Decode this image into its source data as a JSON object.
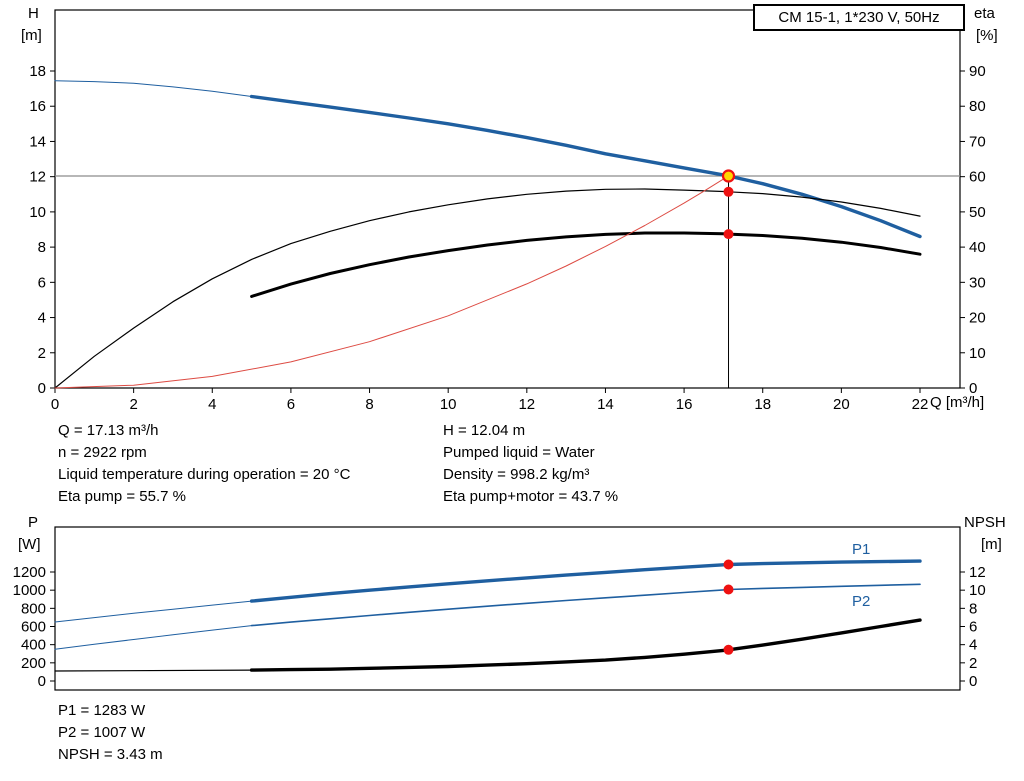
{
  "title_box": {
    "label": "CM 15-1, 1*230 V, 50Hz"
  },
  "colors": {
    "curve_blue": "#1f5fa0",
    "curve_black": "#000000",
    "system_red": "#dd4b43",
    "marker_red": "#ee1111",
    "duty_yellow": "#ffd700",
    "ref_gray": "#8c8c8c"
  },
  "info": {
    "top_left": [
      "Q = 17.13 m³/h",
      "n = 2922 rpm",
      "Liquid temperature during operation = 20 °C",
      "Eta pump = 55.7 %"
    ],
    "top_right": [
      "H = 12.04 m",
      "Pumped liquid = Water",
      "Density = 998.2 kg/m³",
      "Eta pump+motor = 43.7 %"
    ],
    "bottom": [
      "P1 = 1283 W",
      "P2 = 1007 W",
      "NPSH = 3.43 m"
    ]
  },
  "chart_data": [
    {
      "name": "qh-chart",
      "type": "line",
      "title": "CM 15-1, 1*230 V, 50Hz",
      "axes": {
        "left": {
          "title_lines": [
            "H",
            "[m]"
          ],
          "ticks": [
            0,
            2,
            4,
            6,
            8,
            10,
            12,
            14,
            16,
            18
          ],
          "range": [
            0,
            21.5
          ]
        },
        "right": {
          "title_lines": [
            "eta",
            "[%]"
          ],
          "ticks": [
            0,
            10,
            20,
            30,
            40,
            50,
            60,
            70,
            80,
            90
          ],
          "range": [
            0,
            107
          ]
        },
        "x": {
          "title": "Q [m³/h]",
          "ticks": [
            0,
            2,
            4,
            6,
            8,
            10,
            12,
            14,
            16,
            18,
            20,
            22
          ],
          "range": [
            0,
            23
          ]
        }
      },
      "ref_lines": [
        {
          "name": "duty-flow-line",
          "type": "v",
          "x": 17.13,
          "from": 0,
          "to": 12.04,
          "axis": "left",
          "color": "#000000",
          "width": 1
        },
        {
          "name": "duty-head-line",
          "type": "h",
          "value": 12.04,
          "axis": "left",
          "color": "#8c8c8c",
          "width": 1.2
        }
      ],
      "series": [
        {
          "name": "head-extension",
          "axis": "left",
          "color": "#1f5fa0",
          "width": 1,
          "points": [
            [
              0,
              17.45
            ],
            [
              1,
              17.4
            ],
            [
              2,
              17.3
            ],
            [
              3,
              17.1
            ],
            [
              4,
              16.85
            ],
            [
              5,
              16.55
            ]
          ]
        },
        {
          "name": "head-curve",
          "axis": "left",
          "color": "#1f5fa0",
          "width": 3.4,
          "points": [
            [
              5,
              16.55
            ],
            [
              6,
              16.25
            ],
            [
              7,
              15.95
            ],
            [
              8,
              15.65
            ],
            [
              9,
              15.33
            ],
            [
              10,
              15.0
            ],
            [
              11,
              14.63
            ],
            [
              12,
              14.22
            ],
            [
              13,
              13.78
            ],
            [
              14,
              13.3
            ],
            [
              15,
              12.9
            ],
            [
              16,
              12.5
            ],
            [
              17,
              12.1
            ],
            [
              17.13,
              12.04
            ],
            [
              18,
              11.6
            ],
            [
              19,
              11.0
            ],
            [
              20,
              10.3
            ],
            [
              21,
              9.5
            ],
            [
              22,
              8.6
            ]
          ]
        },
        {
          "name": "eta-pump",
          "axis": "right",
          "color": "#000000",
          "width": 1.2,
          "points": [
            [
              0,
              0
            ],
            [
              1,
              9
            ],
            [
              2,
              17
            ],
            [
              3,
              24.5
            ],
            [
              4,
              31
            ],
            [
              5,
              36.5
            ],
            [
              6,
              41
            ],
            [
              7,
              44.5
            ],
            [
              8,
              47.5
            ],
            [
              9,
              50
            ],
            [
              10,
              52
            ],
            [
              11,
              53.7
            ],
            [
              12,
              55
            ],
            [
              13,
              55.9
            ],
            [
              14,
              56.4
            ],
            [
              15,
              56.5
            ],
            [
              16,
              56.2
            ],
            [
              17,
              55.8
            ],
            [
              17.13,
              55.7
            ],
            [
              18,
              55.2
            ],
            [
              19,
              54.2
            ],
            [
              20,
              52.8
            ],
            [
              21,
              51
            ],
            [
              22,
              48.8
            ]
          ]
        },
        {
          "name": "eta-pump-motor",
          "axis": "right",
          "color": "#000000",
          "width": 3,
          "points": [
            [
              5,
              26
            ],
            [
              6,
              29.5
            ],
            [
              7,
              32.5
            ],
            [
              8,
              35
            ],
            [
              9,
              37.2
            ],
            [
              10,
              39
            ],
            [
              11,
              40.6
            ],
            [
              12,
              41.9
            ],
            [
              13,
              42.9
            ],
            [
              14,
              43.6
            ],
            [
              15,
              44.0
            ],
            [
              16,
              44.0
            ],
            [
              17,
              43.8
            ],
            [
              17.13,
              43.7
            ],
            [
              18,
              43.3
            ],
            [
              19,
              42.5
            ],
            [
              20,
              41.4
            ],
            [
              21,
              39.9
            ],
            [
              22,
              38.0
            ]
          ]
        },
        {
          "name": "system-curve",
          "axis": "left",
          "color": "#dd4b43",
          "width": 1,
          "points": [
            [
              0,
              0
            ],
            [
              2,
              0.16
            ],
            [
              4,
              0.66
            ],
            [
              6,
              1.48
            ],
            [
              8,
              2.63
            ],
            [
              10,
              4.1
            ],
            [
              12,
              5.91
            ],
            [
              13,
              6.93
            ],
            [
              14,
              8.04
            ],
            [
              15,
              9.23
            ],
            [
              16,
              10.5
            ],
            [
              16.5,
              11.17
            ],
            [
              17,
              11.86
            ],
            [
              17.13,
              12.04
            ]
          ]
        }
      ],
      "markers": [
        {
          "name": "duty-point",
          "x": 17.13,
          "value": 12.04,
          "axis": "left",
          "r": 5.5,
          "fill": "#ffd700",
          "stroke": "#ee1111",
          "stroke_width": 2.2
        },
        {
          "name": "eta-pump-point",
          "x": 17.13,
          "value": 55.7,
          "axis": "right",
          "r": 5,
          "fill": "#ee1111"
        },
        {
          "name": "eta-pump-motor-point",
          "x": 17.13,
          "value": 43.7,
          "axis": "right",
          "r": 5,
          "fill": "#ee1111"
        }
      ]
    },
    {
      "name": "power-npsh-chart",
      "type": "line",
      "title": "",
      "axes": {
        "left": {
          "title_lines": [
            "P",
            "[W]"
          ],
          "ticks": [
            0,
            200,
            400,
            600,
            800,
            1000,
            1200
          ],
          "range": [
            0,
            1700
          ]
        },
        "right": {
          "title_lines": [
            "NPSH",
            "[m]"
          ],
          "ticks": [
            0,
            2,
            4,
            6,
            8,
            10,
            12
          ],
          "range": [
            0,
            17
          ]
        },
        "x": {
          "title": "",
          "ticks": [],
          "range": [
            0,
            23
          ]
        }
      },
      "ref_lines": [],
      "series": [
        {
          "name": "p1-extension",
          "axis": "left",
          "color": "#1f5fa0",
          "width": 1,
          "points": [
            [
              0,
              650
            ],
            [
              1,
              698
            ],
            [
              2,
              745
            ],
            [
              3,
              791
            ],
            [
              4,
              836
            ],
            [
              5,
              880
            ]
          ]
        },
        {
          "name": "p1-curve",
          "axis": "left",
          "color": "#1f5fa0",
          "width": 3.4,
          "points": [
            [
              5,
              880
            ],
            [
              6,
              922
            ],
            [
              7,
              962
            ],
            [
              8,
              1000
            ],
            [
              9,
              1036
            ],
            [
              10,
              1070
            ],
            [
              11,
              1103
            ],
            [
              12,
              1135
            ],
            [
              13,
              1166
            ],
            [
              14,
              1196
            ],
            [
              15,
              1225
            ],
            [
              16,
              1253
            ],
            [
              17,
              1279
            ],
            [
              17.13,
              1283
            ],
            [
              18,
              1292
            ],
            [
              19,
              1301
            ],
            [
              20,
              1309
            ],
            [
              21,
              1315
            ],
            [
              22,
              1320
            ]
          ]
        },
        {
          "name": "p2-extension",
          "axis": "left",
          "color": "#1f5fa0",
          "width": 1,
          "points": [
            [
              0,
              350
            ],
            [
              1,
              404
            ],
            [
              2,
              457
            ],
            [
              3,
              509
            ],
            [
              4,
              560
            ],
            [
              5,
              610
            ]
          ]
        },
        {
          "name": "p2-curve",
          "axis": "left",
          "color": "#1f5fa0",
          "width": 1.6,
          "points": [
            [
              5,
              610
            ],
            [
              6,
              648
            ],
            [
              7,
              685
            ],
            [
              8,
              721
            ],
            [
              9,
              756
            ],
            [
              10,
              790
            ],
            [
              11,
              823
            ],
            [
              12,
              855
            ],
            [
              13,
              886
            ],
            [
              14,
              916
            ],
            [
              15,
              945
            ],
            [
              16,
              974
            ],
            [
              17,
              1003
            ],
            [
              17.13,
              1007
            ],
            [
              18,
              1019
            ],
            [
              19,
              1031
            ],
            [
              20,
              1043
            ],
            [
              21,
              1054
            ],
            [
              22,
              1065
            ]
          ]
        },
        {
          "name": "npsh-extension",
          "axis": "right",
          "color": "#000000",
          "width": 1.2,
          "points": [
            [
              0,
              1.1
            ],
            [
              5,
              1.2
            ]
          ]
        },
        {
          "name": "npsh-curve",
          "axis": "right",
          "color": "#000000",
          "width": 3.4,
          "points": [
            [
              5,
              1.2
            ],
            [
              6,
              1.25
            ],
            [
              7,
              1.3
            ],
            [
              8,
              1.4
            ],
            [
              9,
              1.5
            ],
            [
              10,
              1.6
            ],
            [
              11,
              1.75
            ],
            [
              12,
              1.9
            ],
            [
              13,
              2.1
            ],
            [
              14,
              2.3
            ],
            [
              15,
              2.6
            ],
            [
              16,
              2.95
            ],
            [
              17,
              3.37
            ],
            [
              17.13,
              3.43
            ],
            [
              18,
              3.95
            ],
            [
              19,
              4.6
            ],
            [
              20,
              5.3
            ],
            [
              21,
              6.0
            ],
            [
              22,
              6.7
            ]
          ]
        }
      ],
      "markers": [
        {
          "name": "p1-point",
          "x": 17.13,
          "value": 1283,
          "axis": "left",
          "r": 5,
          "fill": "#ee1111"
        },
        {
          "name": "p2-point",
          "x": 17.13,
          "value": 1007,
          "axis": "left",
          "r": 5,
          "fill": "#ee1111"
        },
        {
          "name": "npsh-point",
          "x": 17.13,
          "value": 3.43,
          "axis": "right",
          "r": 5,
          "fill": "#ee1111"
        }
      ],
      "series_labels": [
        {
          "text": "P1"
        },
        {
          "text": "P2"
        }
      ]
    }
  ]
}
